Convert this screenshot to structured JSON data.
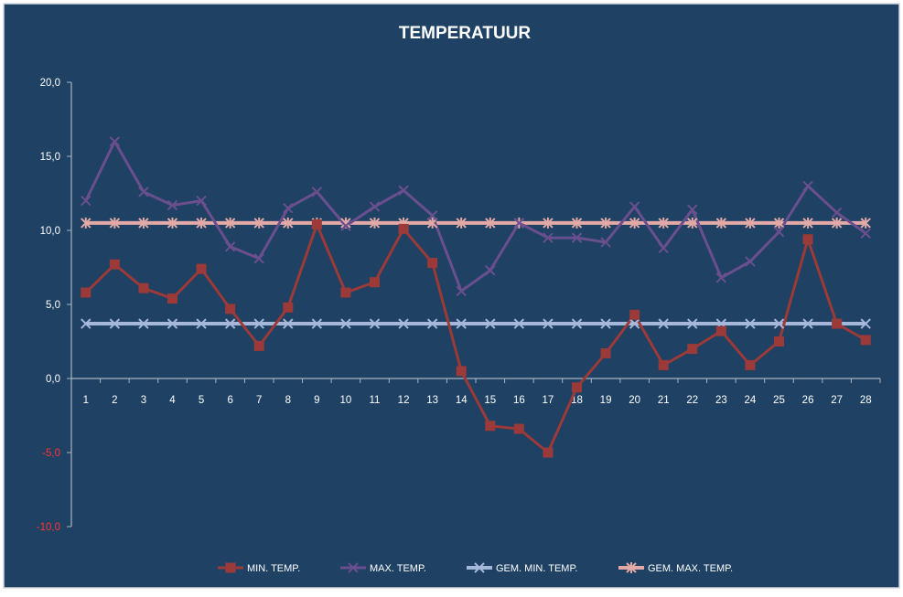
{
  "chart_data": {
    "type": "line",
    "title": "TEMPERATUUR",
    "xlabel": "",
    "ylabel": "",
    "categories": [
      "1",
      "2",
      "3",
      "4",
      "5",
      "6",
      "7",
      "8",
      "9",
      "10",
      "11",
      "12",
      "13",
      "14",
      "15",
      "16",
      "17",
      "18",
      "19",
      "20",
      "21",
      "22",
      "23",
      "24",
      "25",
      "26",
      "27",
      "28"
    ],
    "ylim": [
      -10,
      20
    ],
    "yticks": [
      "-10,0",
      "-5,0",
      "0,0",
      "5,0",
      "10,0",
      "15,0",
      "20,0"
    ],
    "ytick_values": [
      -10,
      -5,
      0,
      5,
      10,
      15,
      20
    ],
    "negative_tick_color": "#ff3333",
    "grid": false,
    "legend_position": "bottom",
    "colors": {
      "background": "#1f4163",
      "frame": "#d0d8e0",
      "axis": "#a9b4c2",
      "text": "#ffffff"
    },
    "series": [
      {
        "name": "MIN. TEMP.",
        "marker": "square",
        "color": "#9b3a38",
        "values": [
          5.8,
          7.7,
          6.1,
          5.4,
          7.4,
          4.7,
          2.2,
          4.8,
          10.4,
          5.8,
          6.5,
          10.1,
          7.8,
          0.5,
          -3.2,
          -3.4,
          -5.0,
          -0.6,
          1.7,
          4.3,
          0.9,
          2.0,
          3.2,
          0.9,
          2.5,
          9.4,
          3.7,
          2.6
        ]
      },
      {
        "name": "MAX. TEMP.",
        "marker": "x",
        "color": "#6a4f8e",
        "values": [
          12.0,
          16.0,
          12.6,
          11.7,
          12.0,
          8.9,
          8.1,
          11.5,
          12.6,
          10.3,
          11.6,
          12.7,
          11.0,
          5.9,
          7.3,
          10.5,
          9.5,
          9.5,
          9.2,
          11.6,
          8.8,
          11.4,
          6.8,
          7.9,
          9.9,
          13.0,
          11.2,
          9.8
        ]
      },
      {
        "name": "GEM. MIN. TEMP.",
        "marker": "x",
        "color": "#a6b8da",
        "values": [
          3.7,
          3.7,
          3.7,
          3.7,
          3.7,
          3.7,
          3.7,
          3.7,
          3.7,
          3.7,
          3.7,
          3.7,
          3.7,
          3.7,
          3.7,
          3.7,
          3.7,
          3.7,
          3.7,
          3.7,
          3.7,
          3.7,
          3.7,
          3.7,
          3.7,
          3.7,
          3.7,
          3.7
        ]
      },
      {
        "name": "GEM. MAX. TEMP.",
        "marker": "asterisk",
        "color": "#e2a9a6",
        "values": [
          10.5,
          10.5,
          10.5,
          10.5,
          10.5,
          10.5,
          10.5,
          10.5,
          10.5,
          10.5,
          10.5,
          10.5,
          10.5,
          10.5,
          10.5,
          10.5,
          10.5,
          10.5,
          10.5,
          10.5,
          10.5,
          10.5,
          10.5,
          10.5,
          10.5,
          10.5,
          10.5,
          10.5
        ]
      }
    ]
  }
}
